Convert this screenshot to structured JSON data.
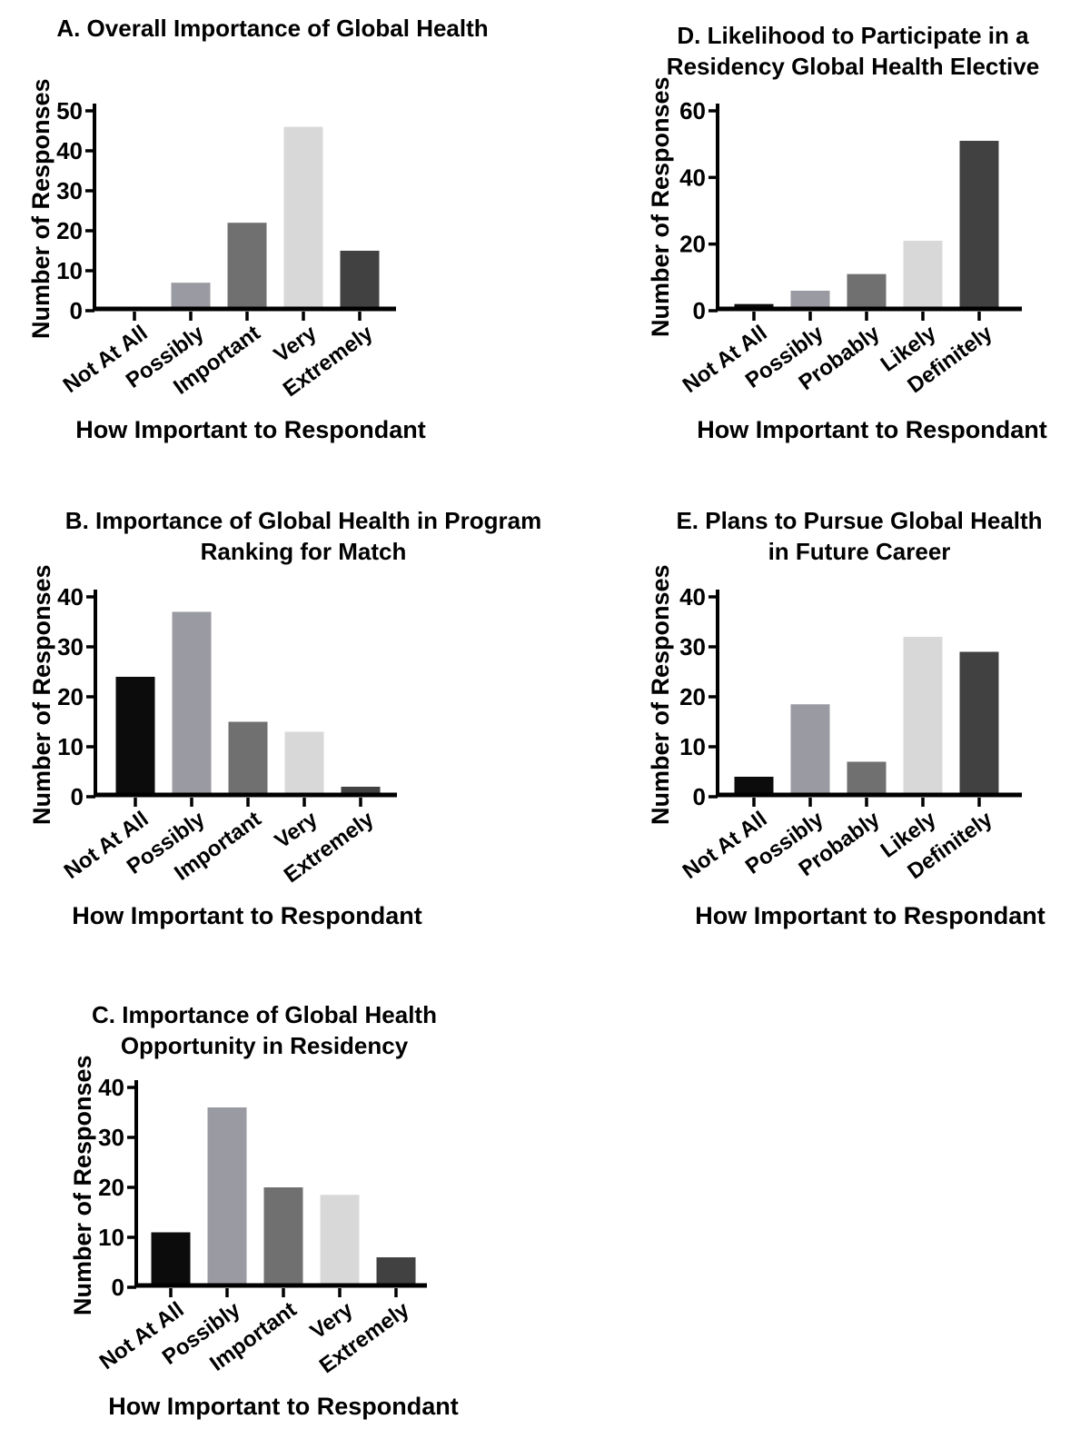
{
  "bar_colors": [
    "#0c0c0c",
    "#9a9aa2",
    "#707070",
    "#d8d8d8",
    "#414141"
  ],
  "chart_data": [
    {
      "panel": "A",
      "type": "bar",
      "title": "A. Overall Importance of Global Health",
      "xlabel": "How Important to Respondant",
      "ylabel": "Number of Responses",
      "categories": [
        "Not At All",
        "Possibly",
        "Important",
        "Very",
        "Extremely"
      ],
      "values": [
        1,
        7,
        22,
        46,
        15
      ],
      "ylim": [
        0,
        50
      ],
      "yticks": [
        0,
        10,
        20,
        30,
        40,
        50
      ],
      "grid": false,
      "legend": false
    },
    {
      "panel": "B",
      "type": "bar",
      "title": "B. Importance of Global Health in Program\nRanking for Match",
      "xlabel": "How Important to Respondant",
      "ylabel": "Number of Responses",
      "categories": [
        "Not At All",
        "Possibly",
        "Important",
        "Very",
        "Extremely"
      ],
      "values": [
        24,
        37,
        15,
        13,
        2
      ],
      "ylim": [
        0,
        40
      ],
      "yticks": [
        0,
        10,
        20,
        30,
        40
      ],
      "grid": false,
      "legend": false
    },
    {
      "panel": "C",
      "type": "bar",
      "title": "C. Importance of Global Health\nOpportunity in Residency",
      "xlabel": "How Important to Respondant",
      "ylabel": "Number of Responses",
      "categories": [
        "Not At All",
        "Possibly",
        "Important",
        "Very",
        "Extremely"
      ],
      "values": [
        11,
        36,
        20,
        18.5,
        6
      ],
      "ylim": [
        0,
        40
      ],
      "yticks": [
        0,
        10,
        20,
        30,
        40
      ],
      "grid": false,
      "legend": false
    },
    {
      "panel": "D",
      "type": "bar",
      "title": "D. Likelihood to Participate in a\nResidency Global Health Elective",
      "xlabel": "How Important to Respondant",
      "ylabel": "Number of Responses",
      "categories": [
        "Not At All",
        "Possibly",
        "Probably",
        "Likely",
        "Definitely"
      ],
      "values": [
        2,
        6,
        11,
        21,
        51
      ],
      "ylim": [
        0,
        60
      ],
      "yticks": [
        0,
        20,
        40,
        60
      ],
      "grid": false,
      "legend": false
    },
    {
      "panel": "E",
      "type": "bar",
      "title": "E. Plans to Pursue Global Health\nin Future Career",
      "xlabel": "How Important to Respondant",
      "ylabel": "Number of Responses",
      "categories": [
        "Not At All",
        "Possibly",
        "Probably",
        "Likely",
        "Definitely"
      ],
      "values": [
        4,
        18.5,
        7,
        32,
        29
      ],
      "ylim": [
        0,
        40
      ],
      "yticks": [
        0,
        10,
        20,
        30,
        40
      ],
      "grid": false,
      "legend": false
    }
  ]
}
